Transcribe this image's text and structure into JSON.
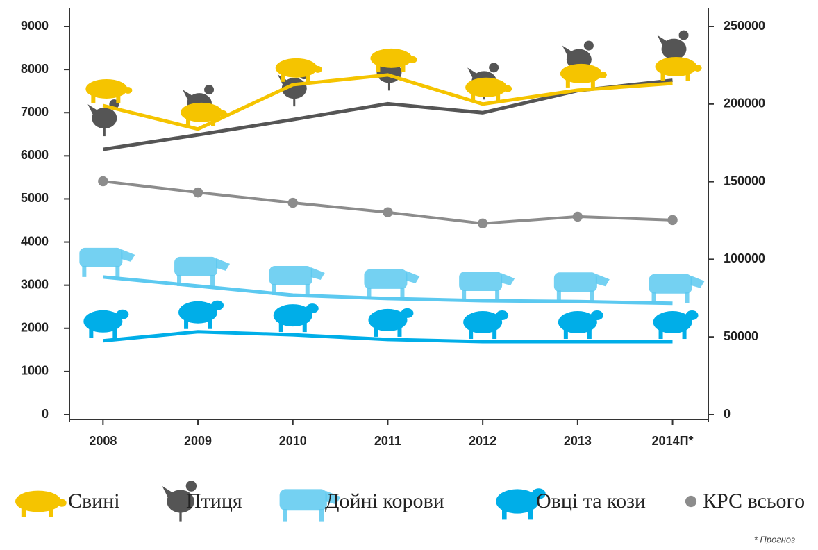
{
  "chart_data": {
    "type": "line",
    "categories": [
      "2008",
      "2009",
      "2010",
      "2011",
      "2012",
      "2013",
      "2014П*"
    ],
    "series": [
      {
        "name": "Свині",
        "color": "#f5c400",
        "values": [
          7165,
          6620,
          7650,
          7875,
          7200,
          7520,
          7680
        ]
      },
      {
        "name": "Птиця",
        "color": "#555555",
        "axis": "y2",
        "values": [
          170800,
          180200,
          190000,
          200200,
          194400,
          208600,
          215300
        ]
      },
      {
        "name": "Дойні корови",
        "color": "#5cc9f0",
        "values": [
          3190,
          2980,
          2770,
          2690,
          2640,
          2620,
          2580
        ]
      },
      {
        "name": "Овці та кози",
        "color": "#00aee8",
        "values": [
          1710,
          1920,
          1850,
          1740,
          1690,
          1690,
          1690
        ]
      },
      {
        "name": "КРС всього",
        "color": "#8c8c8c",
        "values": [
          5410,
          5150,
          4910,
          4690,
          4430,
          4590,
          4510
        ]
      }
    ],
    "ylim": [
      0,
      9000
    ],
    "yticks": [
      0,
      1000,
      2000,
      3000,
      4000,
      5000,
      6000,
      7000,
      8000,
      9000
    ],
    "y2lim": [
      0,
      250000
    ],
    "y2ticks": [
      0,
      50000,
      100000,
      150000,
      200000,
      250000
    ],
    "footnote": "* Прогноз"
  }
}
